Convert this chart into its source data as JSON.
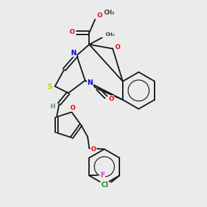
{
  "bg_color": "#ebebeb",
  "atom_colors": {
    "N": "#0000ee",
    "O": "#ee0000",
    "S": "#cccc00",
    "C": "#1a1a1a",
    "H": "#4a9090",
    "Cl": "#228822",
    "F": "#cc44cc"
  },
  "bond_color": "#1a1a1a",
  "bond_lw": 1.4
}
